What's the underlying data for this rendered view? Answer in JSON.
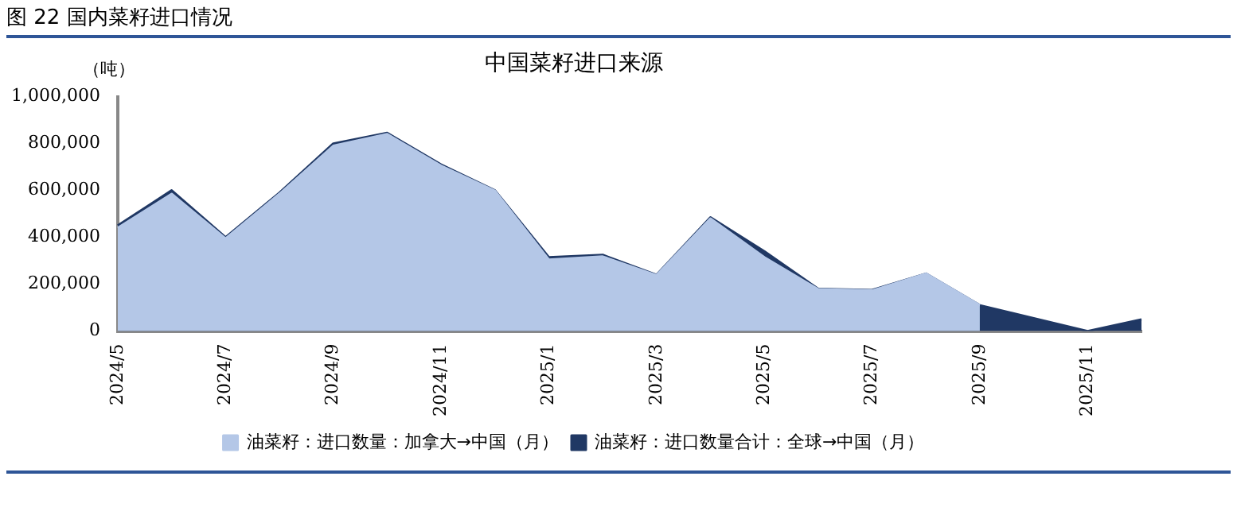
{
  "chart_data": {
    "type": "area",
    "title": "中国菜籽进口来源",
    "ylabel": "（吨）",
    "annotations": [
      "图 22 国内菜籽进口情况"
    ],
    "categories": [
      "2024/5",
      null,
      "2024/7",
      null,
      "2024/9",
      null,
      "2024/11",
      null,
      "2025/1",
      null,
      "2025/3",
      null,
      "2025/5",
      null,
      "2025/7",
      null,
      "2025/9",
      null,
      "2025/11",
      null
    ],
    "series": [
      {
        "name": "油菜籽：进口数量合计：全球→中国（月）",
        "color": "#203864",
        "values": [
          450000,
          600000,
          400000,
          590000,
          800000,
          845000,
          710000,
          600000,
          315000,
          325000,
          240000,
          485000,
          340000,
          180000,
          175000,
          245000,
          110000,
          55000,
          0,
          50000
        ]
      },
      {
        "name": "油菜籽：进口数量：加拿大→中国（月）",
        "color": "#b4c7e7",
        "values": [
          440000,
          585000,
          395000,
          585000,
          790000,
          840000,
          705000,
          598000,
          305000,
          318000,
          238000,
          480000,
          315000,
          178000,
          173000,
          245000,
          110000,
          null,
          null,
          null
        ]
      }
    ],
    "ylim": [
      0,
      1000000
    ],
    "yticks": [
      0,
      {
        "value": 200000,
        "label": "200,000"
      },
      {
        "value": 400000,
        "label": "400,000"
      },
      {
        "value": 600000,
        "label": "600,000"
      },
      {
        "value": 800000,
        "label": "800,000"
      },
      {
        "value": 1000000,
        "label": "1,000,000"
      }
    ],
    "grid": false,
    "legend": "bottom"
  }
}
